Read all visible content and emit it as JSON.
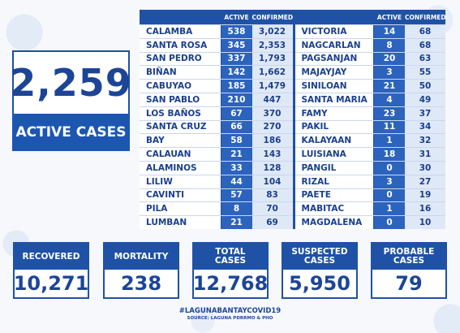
{
  "headline": {
    "active_total": "2,259",
    "active_label": "ACTIVE CASES"
  },
  "table": {
    "col_active": "ACTIVE",
    "col_confirmed": "CONFIRMED",
    "left": [
      {
        "name": "CALAMBA",
        "active": "538",
        "confirmed": "3,022"
      },
      {
        "name": "SANTA ROSA",
        "active": "345",
        "confirmed": "2,353"
      },
      {
        "name": "SAN PEDRO",
        "active": "337",
        "confirmed": "1,793"
      },
      {
        "name": "BIÑAN",
        "active": "142",
        "confirmed": "1,662"
      },
      {
        "name": "CABUYAO",
        "active": "185",
        "confirmed": "1,479"
      },
      {
        "name": "SAN PABLO",
        "active": "210",
        "confirmed": "447"
      },
      {
        "name": "LOS BAÑOS",
        "active": "67",
        "confirmed": "370"
      },
      {
        "name": "SANTA CRUZ",
        "active": "66",
        "confirmed": "270"
      },
      {
        "name": "BAY",
        "active": "58",
        "confirmed": "186"
      },
      {
        "name": "CALAUAN",
        "active": "21",
        "confirmed": "143"
      },
      {
        "name": "ALAMINOS",
        "active": "33",
        "confirmed": "128"
      },
      {
        "name": "LILIW",
        "active": "44",
        "confirmed": "104"
      },
      {
        "name": "CAVINTI",
        "active": "57",
        "confirmed": "83"
      },
      {
        "name": "PILA",
        "active": "8",
        "confirmed": "70"
      },
      {
        "name": "LUMBAN",
        "active": "21",
        "confirmed": "69"
      }
    ],
    "right": [
      {
        "name": "VICTORIA",
        "active": "14",
        "confirmed": "68"
      },
      {
        "name": "NAGCARLAN",
        "active": "8",
        "confirmed": "68"
      },
      {
        "name": "PAGSANJAN",
        "active": "20",
        "confirmed": "63"
      },
      {
        "name": "MAJAYJAY",
        "active": "3",
        "confirmed": "55"
      },
      {
        "name": "SINILOAN",
        "active": "21",
        "confirmed": "50"
      },
      {
        "name": "SANTA MARIA",
        "active": "4",
        "confirmed": "49"
      },
      {
        "name": "FAMY",
        "active": "23",
        "confirmed": "37"
      },
      {
        "name": "PAKIL",
        "active": "11",
        "confirmed": "34"
      },
      {
        "name": "KALAYAAN",
        "active": "1",
        "confirmed": "32"
      },
      {
        "name": "LUISIANA",
        "active": "18",
        "confirmed": "31"
      },
      {
        "name": "PANGIL",
        "active": "0",
        "confirmed": "30"
      },
      {
        "name": "RIZAL",
        "active": "3",
        "confirmed": "27"
      },
      {
        "name": "PAETE",
        "active": "0",
        "confirmed": "19"
      },
      {
        "name": "MABITAC",
        "active": "1",
        "confirmed": "16"
      },
      {
        "name": "MAGDALENA",
        "active": "0",
        "confirmed": "10"
      }
    ]
  },
  "stats": [
    {
      "label": "RECOVERED",
      "value": "10,271"
    },
    {
      "label": "MORTALITY",
      "value": "238"
    },
    {
      "label": "TOTAL\nCASES",
      "value": "12,768"
    },
    {
      "label": "SUSPECTED\nCASES",
      "value": "5,950"
    },
    {
      "label": "PROBABLE\nCASES",
      "value": "79"
    }
  ],
  "footer": {
    "hashtag": "#LAGUNABANTAYCOVID19",
    "source": "SOURCE: LAGUNA PDRRMO & PHO"
  }
}
